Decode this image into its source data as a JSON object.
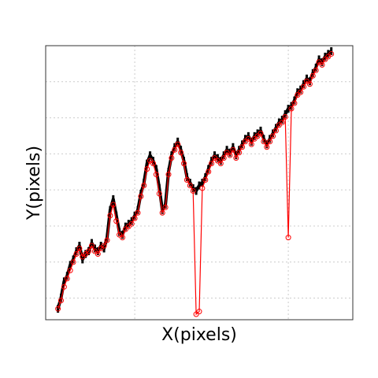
{
  "chart_data": {
    "type": "scatter",
    "title": "",
    "xlabel": "X(pixels)",
    "ylabel": "Y(pixels)",
    "xlim": [
      0,
      100
    ],
    "ylim": [
      0,
      100
    ],
    "grid": true,
    "legend": "none",
    "colors": {
      "observed": "#000000",
      "tracked": "#ff0000",
      "grid": "#cccccc",
      "frame": "#333333"
    },
    "series": [
      {
        "style": "filled-black-trace",
        "values": [
          [
            4,
            4
          ],
          [
            5,
            8
          ],
          [
            6,
            14
          ],
          [
            7,
            16
          ],
          [
            8,
            20
          ],
          [
            9,
            22
          ],
          [
            10,
            25
          ],
          [
            11,
            27
          ],
          [
            12,
            22
          ],
          [
            13,
            24
          ],
          [
            14,
            25
          ],
          [
            15,
            28
          ],
          [
            16,
            26
          ],
          [
            17,
            25
          ],
          [
            18,
            27
          ],
          [
            19,
            26
          ],
          [
            20,
            30
          ],
          [
            21,
            40
          ],
          [
            22,
            44
          ],
          [
            23,
            38
          ],
          [
            24,
            32
          ],
          [
            25,
            31
          ],
          [
            26,
            34
          ],
          [
            27,
            35
          ],
          [
            28,
            36
          ],
          [
            29,
            38
          ],
          [
            30,
            40
          ],
          [
            31,
            46
          ],
          [
            32,
            50
          ],
          [
            33,
            57
          ],
          [
            34,
            60
          ],
          [
            35,
            58
          ],
          [
            36,
            55
          ],
          [
            37,
            48
          ],
          [
            38,
            40
          ],
          [
            39,
            42
          ],
          [
            40,
            54
          ],
          [
            41,
            60
          ],
          [
            42,
            63
          ],
          [
            43,
            65
          ],
          [
            44,
            62
          ],
          [
            45,
            58
          ],
          [
            46,
            52
          ],
          [
            47,
            50
          ],
          [
            48,
            48
          ],
          [
            49,
            47
          ],
          [
            50,
            49
          ],
          [
            51,
            50
          ],
          [
            52,
            52
          ],
          [
            53,
            55
          ],
          [
            54,
            58
          ],
          [
            55,
            60
          ],
          [
            56,
            59
          ],
          [
            57,
            58
          ],
          [
            58,
            60
          ],
          [
            59,
            62
          ],
          [
            60,
            61
          ],
          [
            61,
            63
          ],
          [
            62,
            60
          ],
          [
            63,
            62
          ],
          [
            64,
            64
          ],
          [
            65,
            66
          ],
          [
            66,
            67
          ],
          [
            67,
            65
          ],
          [
            68,
            67
          ],
          [
            69,
            68
          ],
          [
            70,
            69
          ],
          [
            71,
            66
          ],
          [
            72,
            64
          ],
          [
            73,
            66
          ],
          [
            74,
            68
          ],
          [
            75,
            70
          ],
          [
            76,
            72
          ],
          [
            77,
            73
          ],
          [
            78,
            75
          ],
          [
            79,
            77
          ],
          [
            80,
            78
          ],
          [
            81,
            80
          ],
          [
            82,
            83
          ],
          [
            83,
            84
          ],
          [
            84,
            86
          ],
          [
            85,
            88
          ],
          [
            86,
            87
          ],
          [
            87,
            90
          ],
          [
            88,
            92
          ],
          [
            89,
            95
          ],
          [
            90,
            94
          ],
          [
            91,
            96
          ],
          [
            92,
            97
          ],
          [
            93,
            98
          ]
        ]
      },
      {
        "style": "red-circles-line",
        "values": [
          [
            4,
            4
          ],
          [
            5,
            7
          ],
          [
            6,
            12
          ],
          [
            7,
            15
          ],
          [
            8,
            18
          ],
          [
            9,
            21
          ],
          [
            10,
            24
          ],
          [
            11,
            26
          ],
          [
            12,
            23
          ],
          [
            13,
            24
          ],
          [
            14,
            25
          ],
          [
            15,
            27
          ],
          [
            16,
            25
          ],
          [
            17,
            24
          ],
          [
            18,
            26
          ],
          [
            19,
            27
          ],
          [
            20,
            29
          ],
          [
            21,
            38
          ],
          [
            22,
            42
          ],
          [
            23,
            36
          ],
          [
            24,
            31
          ],
          [
            25,
            30
          ],
          [
            26,
            33
          ],
          [
            27,
            34
          ],
          [
            28,
            35
          ],
          [
            29,
            37
          ],
          [
            30,
            39
          ],
          [
            31,
            45
          ],
          [
            32,
            49
          ],
          [
            33,
            55
          ],
          [
            34,
            58
          ],
          [
            35,
            57
          ],
          [
            36,
            53
          ],
          [
            37,
            46
          ],
          [
            38,
            39
          ],
          [
            39,
            41
          ],
          [
            40,
            53
          ],
          [
            41,
            59
          ],
          [
            42,
            62
          ],
          [
            43,
            64
          ],
          [
            44,
            61
          ],
          [
            45,
            57
          ],
          [
            46,
            51
          ],
          [
            47,
            49
          ],
          [
            48,
            47
          ],
          [
            49,
            2
          ],
          [
            50,
            3
          ],
          [
            51,
            48
          ],
          [
            52,
            51
          ],
          [
            53,
            54
          ],
          [
            54,
            57
          ],
          [
            55,
            59
          ],
          [
            56,
            58
          ],
          [
            57,
            57
          ],
          [
            58,
            59
          ],
          [
            59,
            61
          ],
          [
            60,
            60
          ],
          [
            61,
            62
          ],
          [
            62,
            59
          ],
          [
            63,
            61
          ],
          [
            64,
            63
          ],
          [
            65,
            65
          ],
          [
            66,
            66
          ],
          [
            67,
            64
          ],
          [
            68,
            66
          ],
          [
            69,
            67
          ],
          [
            70,
            68
          ],
          [
            71,
            65
          ],
          [
            72,
            63
          ],
          [
            73,
            65
          ],
          [
            74,
            67
          ],
          [
            75,
            69
          ],
          [
            76,
            71
          ],
          [
            77,
            72
          ],
          [
            78,
            74
          ],
          [
            79,
            30
          ],
          [
            80,
            77
          ],
          [
            81,
            79
          ],
          [
            82,
            82
          ],
          [
            83,
            83
          ],
          [
            84,
            85
          ],
          [
            85,
            87
          ],
          [
            86,
            86
          ],
          [
            87,
            89
          ],
          [
            88,
            91
          ],
          [
            89,
            94
          ],
          [
            90,
            93
          ],
          [
            91,
            95
          ],
          [
            92,
            96
          ],
          [
            93,
            97
          ]
        ]
      }
    ]
  }
}
